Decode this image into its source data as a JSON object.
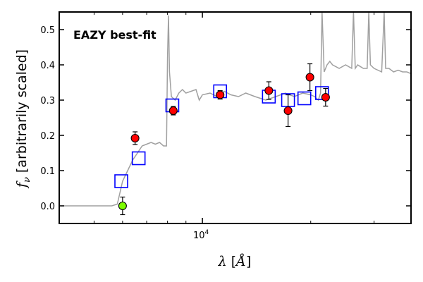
{
  "chart_data": {
    "type": "scatter",
    "title": "",
    "annotation": "EAZY best-fit",
    "annotation_color": "#ff0000",
    "ylabel_main": "f",
    "ylabel_sub": "ν",
    "ylabel_rest": " [arbitrarily scaled]",
    "xlabel_main": "λ",
    "xlabel_unit": "Å",
    "x_scale": "log",
    "xlim": [
      4000,
      38000
    ],
    "ylim": [
      -0.05,
      0.55
    ],
    "y_ticks": [
      0.0,
      0.1,
      0.2,
      0.3,
      0.4,
      0.5
    ],
    "y_tick_labels": [
      "0.0",
      "0.1",
      "0.2",
      "0.3",
      "0.4",
      "0.5"
    ],
    "x_major_ticks": [
      10000
    ],
    "x_tick_base": "10",
    "x_tick_exp": "4",
    "x_minor_ticks": [
      5000,
      6000,
      7000,
      8000,
      9000,
      20000,
      30000
    ],
    "grid": false,
    "colors": {
      "template": "#a0a0a0",
      "observed_fill": "#ff0000",
      "nondetection_fill": "#7cfc00",
      "model_box": "#0000ff",
      "marker_edge": "#000000"
    },
    "template_sed": [
      [
        4000,
        0.0
      ],
      [
        5600,
        0.0
      ],
      [
        5800,
        0.005
      ],
      [
        6000,
        0.07
      ],
      [
        6200,
        0.1
      ],
      [
        6400,
        0.13
      ],
      [
        6600,
        0.15
      ],
      [
        6800,
        0.17
      ],
      [
        7000,
        0.175
      ],
      [
        7200,
        0.18
      ],
      [
        7400,
        0.175
      ],
      [
        7600,
        0.18
      ],
      [
        7800,
        0.17
      ],
      [
        7950,
        0.17
      ],
      [
        8000,
        0.42
      ],
      [
        8050,
        0.54
      ],
      [
        8100,
        0.38
      ],
      [
        8200,
        0.31
      ],
      [
        8400,
        0.3
      ],
      [
        8600,
        0.32
      ],
      [
        8800,
        0.33
      ],
      [
        9000,
        0.32
      ],
      [
        9300,
        0.325
      ],
      [
        9600,
        0.33
      ],
      [
        9800,
        0.3
      ],
      [
        10000,
        0.315
      ],
      [
        10500,
        0.32
      ],
      [
        11000,
        0.31
      ],
      [
        11500,
        0.325
      ],
      [
        12000,
        0.315
      ],
      [
        12600,
        0.31
      ],
      [
        13200,
        0.32
      ],
      [
        14000,
        0.31
      ],
      [
        15000,
        0.3
      ],
      [
        16000,
        0.31
      ],
      [
        17000,
        0.32
      ],
      [
        18000,
        0.31
      ],
      [
        19000,
        0.32
      ],
      [
        20000,
        0.315
      ],
      [
        20500,
        0.31
      ],
      [
        21000,
        0.3
      ],
      [
        21300,
        0.32
      ],
      [
        21500,
        0.55
      ],
      [
        21800,
        0.38
      ],
      [
        22200,
        0.4
      ],
      [
        22600,
        0.41
      ],
      [
        23000,
        0.4
      ],
      [
        24000,
        0.39
      ],
      [
        25000,
        0.4
      ],
      [
        26000,
        0.39
      ],
      [
        26300,
        0.55
      ],
      [
        26600,
        0.39
      ],
      [
        27000,
        0.4
      ],
      [
        28000,
        0.39
      ],
      [
        28700,
        0.39
      ],
      [
        29000,
        0.55
      ],
      [
        29300,
        0.4
      ],
      [
        30000,
        0.39
      ],
      [
        31500,
        0.38
      ],
      [
        32000,
        0.55
      ],
      [
        32300,
        0.39
      ],
      [
        33000,
        0.39
      ],
      [
        34000,
        0.38
      ],
      [
        35000,
        0.385
      ],
      [
        36000,
        0.38
      ],
      [
        37000,
        0.38
      ],
      [
        38000,
        0.375
      ]
    ],
    "model_fluxes": [
      {
        "x": 5950,
        "y": 0.07
      },
      {
        "x": 6650,
        "y": 0.135
      },
      {
        "x": 8250,
        "y": 0.285
      },
      {
        "x": 11200,
        "y": 0.325
      },
      {
        "x": 15300,
        "y": 0.31
      },
      {
        "x": 17300,
        "y": 0.3
      },
      {
        "x": 19200,
        "y": 0.305
      },
      {
        "x": 21500,
        "y": 0.32
      }
    ],
    "observed_fluxes": [
      {
        "x": 6000,
        "y": 0.0,
        "err": 0.025,
        "detected": false
      },
      {
        "x": 6500,
        "y": 0.192,
        "err": 0.018,
        "detected": true
      },
      {
        "x": 8300,
        "y": 0.27,
        "err": 0.012,
        "detected": true
      },
      {
        "x": 11200,
        "y": 0.315,
        "err": 0.012,
        "detected": true
      },
      {
        "x": 15300,
        "y": 0.327,
        "err": 0.025,
        "detected": true
      },
      {
        "x": 17300,
        "y": 0.27,
        "err": 0.045,
        "detected": true
      },
      {
        "x": 19900,
        "y": 0.365,
        "err": 0.038,
        "detected": true
      },
      {
        "x": 22000,
        "y": 0.308,
        "err": 0.025,
        "detected": true
      }
    ]
  }
}
